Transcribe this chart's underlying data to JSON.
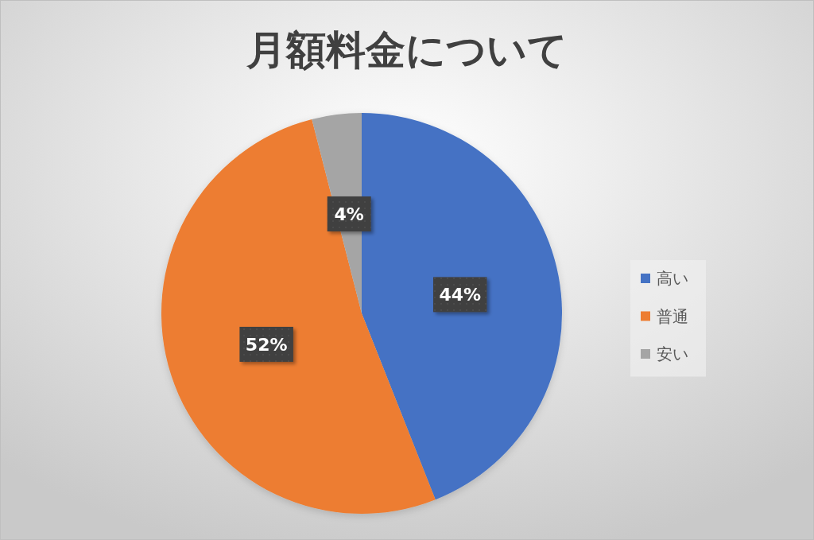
{
  "chart_data": {
    "type": "pie",
    "title": "月額料金について",
    "categories": [
      "高い",
      "普通",
      "安い"
    ],
    "values": [
      44,
      52,
      4
    ],
    "colors": [
      "#4472c4",
      "#ed7d31",
      "#a5a5a5"
    ],
    "value_labels": [
      "44%",
      "52%",
      "4%"
    ],
    "legend": "right"
  }
}
